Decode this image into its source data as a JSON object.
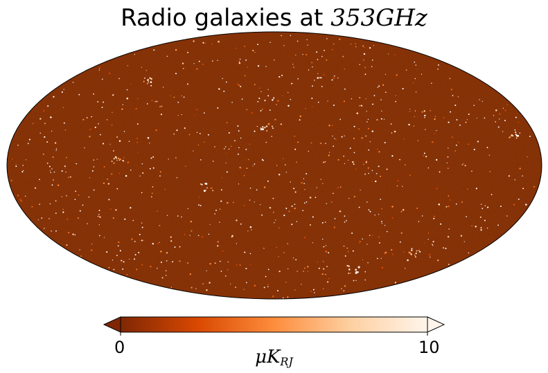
{
  "title": {
    "text": "Radio galaxies at ",
    "math": "353GHz"
  },
  "colorbar": {
    "min_label": "0",
    "max_label": "10",
    "unit_main": "μK",
    "unit_sub": "RJ",
    "colors": [
      "#7f2704",
      "#d94801",
      "#fd8d3c",
      "#fdd0a2",
      "#fff5eb"
    ]
  },
  "map": {
    "projection": "mollweide",
    "background_color": "#7f2a04",
    "outline_color": "#000000"
  }
}
